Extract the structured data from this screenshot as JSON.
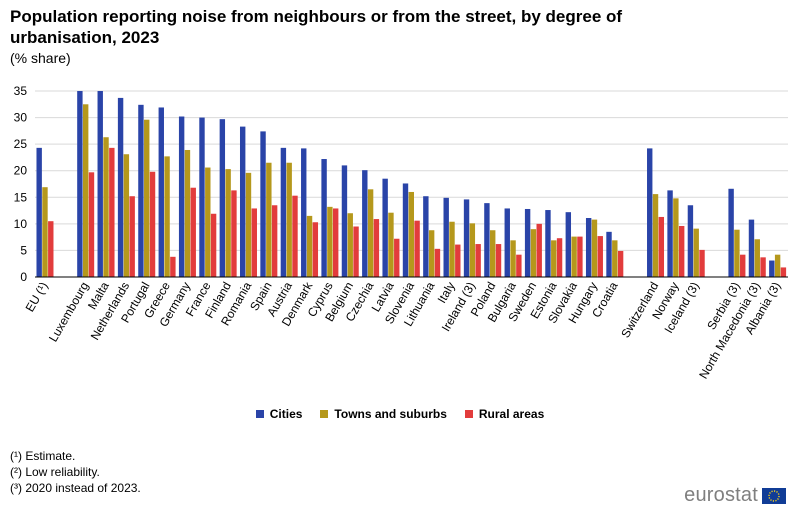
{
  "chart_data": {
    "type": "bar",
    "title": "Population reporting noise from neighbours or from the street, by degree of urbanisation, 2023",
    "subtitle": "(% share)",
    "ylim": [
      0,
      35
    ],
    "yticks": [
      0,
      5,
      10,
      15,
      20,
      25,
      30,
      35
    ],
    "grid": true,
    "legend_position": "bottom",
    "categories": [
      "EU (¹)",
      "",
      "Luxembourg",
      "Malta",
      "Netherlands",
      "Portugal",
      "Greece",
      "Germany",
      "France",
      "Finland",
      "Romania",
      "Spain",
      "Austria",
      "Denmark",
      "Cyprus",
      "Belgium",
      "Czechia",
      "Latvia",
      "Slovenia",
      "Lithuania",
      "Italy",
      "Ireland (3)",
      "Poland",
      "Bulgaria",
      "Sweden",
      "Estonia",
      "Slovakia",
      "Hungary",
      "Croatia",
      "",
      "Switzerland",
      "Norway",
      "Iceland (3)",
      "",
      "Serbia (3)",
      "North Macedonia (3)",
      "Albania (3)"
    ],
    "series": [
      {
        "name": "Cities",
        "color": "#2a44a8",
        "values": [
          24.3,
          null,
          35.0,
          35.0,
          33.7,
          32.4,
          31.9,
          30.2,
          30.0,
          29.7,
          28.3,
          27.4,
          24.3,
          24.2,
          22.2,
          21.0,
          20.1,
          18.5,
          17.6,
          15.2,
          14.9,
          14.6,
          13.9,
          12.9,
          12.8,
          12.6,
          12.2,
          11.1,
          8.5,
          null,
          24.2,
          16.3,
          13.5,
          null,
          16.6,
          10.8,
          3.1
        ]
      },
      {
        "name": "Towns and suburbs",
        "color": "#b5981c",
        "values": [
          16.9,
          null,
          32.5,
          26.3,
          23.1,
          29.6,
          22.7,
          23.9,
          20.6,
          20.3,
          19.6,
          21.5,
          21.5,
          11.5,
          13.2,
          12.0,
          16.5,
          12.1,
          16.0,
          8.8,
          10.4,
          10.1,
          8.8,
          6.9,
          9.0,
          6.9,
          7.6,
          10.8,
          6.9,
          null,
          15.6,
          14.8,
          9.1,
          null,
          8.9,
          7.1,
          4.2
        ]
      },
      {
        "name": "Rural areas",
        "color": "#e23c3c",
        "values": [
          10.5,
          null,
          19.7,
          24.3,
          15.2,
          19.8,
          3.8,
          16.8,
          11.9,
          16.3,
          12.9,
          13.5,
          15.3,
          10.3,
          12.9,
          9.5,
          10.9,
          7.2,
          10.6,
          5.3,
          6.1,
          6.2,
          6.2,
          4.2,
          10.0,
          7.3,
          7.6,
          7.7,
          4.9,
          null,
          11.3,
          9.6,
          5.1,
          null,
          4.2,
          3.7,
          1.8
        ]
      }
    ]
  },
  "legend_labels": {
    "cities": "Cities",
    "towns": "Towns and suburbs",
    "rural": "Rural areas"
  },
  "notes": [
    "(¹) Estimate.",
    "(²) Low reliability.",
    "(³) 2020 instead of 2023."
  ],
  "brand": "eurostat"
}
